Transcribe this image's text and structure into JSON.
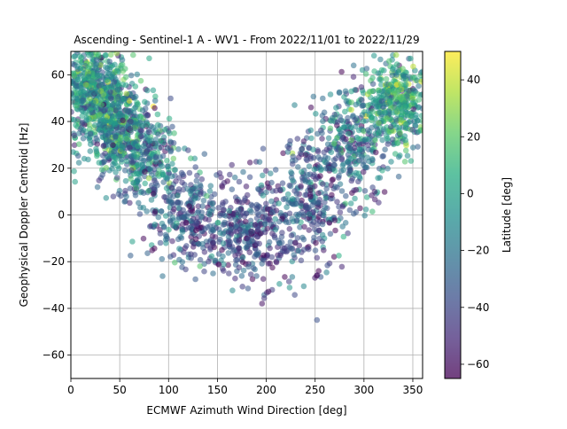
{
  "chart_data": {
    "type": "scatter",
    "title": "Ascending - Sentinel-1 A - WV1 - From 2022/11/01 to 2022/11/29",
    "xlabel": "ECMWF Azimuth Wind Direction [deg]",
    "ylabel": "Geophysical Doppler Centroid [Hz]",
    "xlim": [
      0,
      360
    ],
    "ylim": [
      -70,
      70
    ],
    "x_ticks": [
      0,
      50,
      100,
      150,
      200,
      250,
      300,
      350
    ],
    "y_ticks": [
      -60,
      -40,
      -20,
      0,
      20,
      40,
      60
    ],
    "grid": true,
    "colormap": "viridis",
    "marker_alpha": 0.55,
    "colorbar": {
      "label": "Latitude [deg]",
      "range": [
        -65,
        50
      ],
      "ticks": [
        40,
        20,
        0,
        -20,
        -40,
        -60
      ]
    },
    "point_clusters": [
      {
        "x_center": 20,
        "x_spread": 20,
        "y_center": 55,
        "y_spread": 9,
        "lat_mean": -5,
        "lat_spread": 20,
        "count": 500
      },
      {
        "x_center": 45,
        "x_spread": 20,
        "y_center": 38,
        "y_spread": 10,
        "lat_mean": -10,
        "lat_spread": 22,
        "count": 450
      },
      {
        "x_center": 75,
        "x_spread": 18,
        "y_center": 25,
        "y_spread": 10,
        "lat_mean": -20,
        "lat_spread": 22,
        "count": 300
      },
      {
        "x_center": 120,
        "x_spread": 22,
        "y_center": 0,
        "y_spread": 10,
        "lat_mean": -35,
        "lat_spread": 18,
        "count": 250
      },
      {
        "x_center": 185,
        "x_spread": 28,
        "y_center": -8,
        "y_spread": 12,
        "lat_mean": -40,
        "lat_spread": 16,
        "count": 400
      },
      {
        "x_center": 245,
        "x_spread": 18,
        "y_center": 8,
        "y_spread": 13,
        "lat_mean": -35,
        "lat_spread": 18,
        "count": 280
      },
      {
        "x_center": 290,
        "x_spread": 18,
        "y_center": 30,
        "y_spread": 12,
        "lat_mean": -25,
        "lat_spread": 22,
        "count": 280
      },
      {
        "x_center": 335,
        "x_spread": 18,
        "y_center": 48,
        "y_spread": 10,
        "lat_mean": 0,
        "lat_spread": 20,
        "count": 450
      }
    ]
  }
}
